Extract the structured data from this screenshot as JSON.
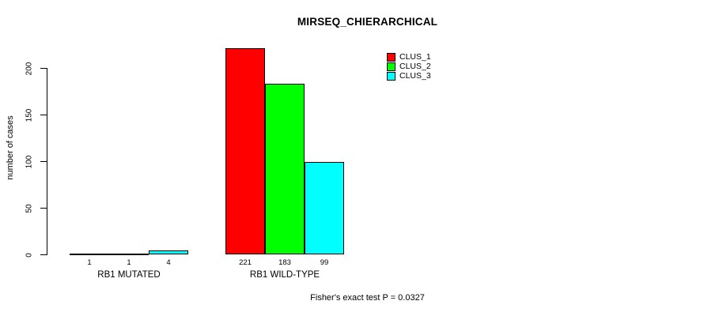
{
  "title": "MIRSEQ_CHIERARCHICAL",
  "footer": "Fisher's exact test P = 0.0327",
  "chart_data": {
    "type": "bar",
    "title": "MIRSEQ_CHIERARCHICAL",
    "xlabel": "",
    "ylabel": "number of cases",
    "ylim": [
      0,
      230
    ],
    "yticks": [
      0,
      50,
      100,
      150,
      200
    ],
    "grid": false,
    "legend_position": "top-right-inside",
    "categories": [
      "RB1 MUTATED",
      "RB1 WILD-TYPE"
    ],
    "series": [
      {
        "name": "CLUS_1",
        "color": "#FF0000",
        "values": [
          1,
          221
        ]
      },
      {
        "name": "CLUS_2",
        "color": "#00FF00",
        "values": [
          1,
          183
        ]
      },
      {
        "name": "CLUS_3",
        "color": "#00FFFF",
        "values": [
          4,
          99
        ]
      }
    ],
    "bar_value_labels": [
      [
        1,
        1,
        4
      ],
      [
        221,
        183,
        99
      ]
    ],
    "annotation": "Fisher's exact test P = 0.0327"
  }
}
